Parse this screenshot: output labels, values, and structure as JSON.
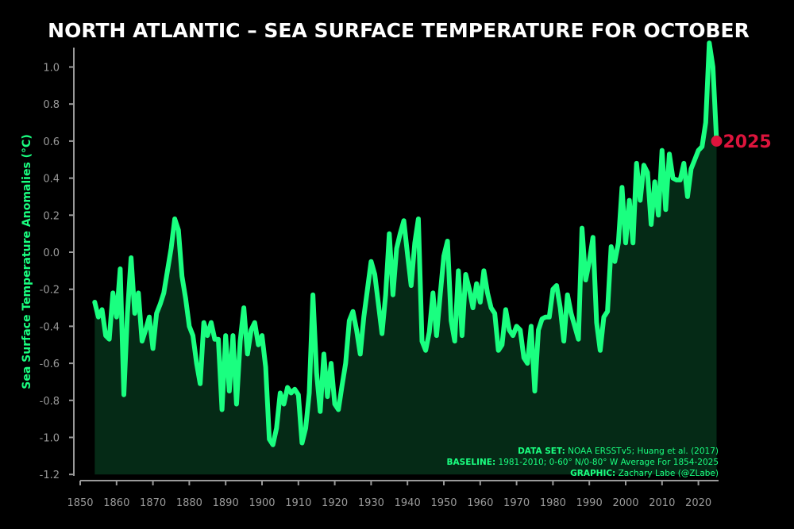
{
  "chart_data": {
    "type": "area",
    "title": "NORTH ATLANTIC – SEA SURFACE TEMPERATURE FOR OCTOBER",
    "xlabel": "",
    "ylabel": "Sea Surface Temperature Anomalies (°C)",
    "xlim": [
      1850,
      2025
    ],
    "ylim": [
      -1.2,
      1.1
    ],
    "grid": false,
    "x_ticks": [
      "1850",
      "1860",
      "1870",
      "1880",
      "1890",
      "1900",
      "1910",
      "1920",
      "1930",
      "1940",
      "1950",
      "1960",
      "1970",
      "1980",
      "1990",
      "2000",
      "2010",
      "2020"
    ],
    "y_ticks": [
      "-1.2",
      "-1.0",
      "-0.8",
      "-0.6",
      "-0.4",
      "-0.2",
      "0.0",
      "0.2",
      "0.4",
      "0.6",
      "0.8",
      "1.0"
    ],
    "x_start": 1854,
    "x_end": 2025,
    "values": [
      -0.27,
      -0.35,
      -0.31,
      -0.45,
      -0.47,
      -0.22,
      -0.35,
      -0.09,
      -0.77,
      -0.33,
      -0.03,
      -0.33,
      -0.22,
      -0.48,
      -0.42,
      -0.35,
      -0.52,
      -0.33,
      -0.28,
      -0.22,
      -0.1,
      0.02,
      0.18,
      0.12,
      -0.13,
      -0.25,
      -0.4,
      -0.45,
      -0.6,
      -0.71,
      -0.38,
      -0.45,
      -0.38,
      -0.47,
      -0.47,
      -0.85,
      -0.45,
      -0.75,
      -0.45,
      -0.82,
      -0.48,
      -0.3,
      -0.55,
      -0.42,
      -0.38,
      -0.5,
      -0.45,
      -0.62,
      -1.01,
      -1.04,
      -0.95,
      -0.76,
      -0.82,
      -0.73,
      -0.76,
      -0.74,
      -0.77,
      -1.03,
      -0.95,
      -0.76,
      -0.23,
      -0.65,
      -0.86,
      -0.55,
      -0.78,
      -0.6,
      -0.82,
      -0.85,
      -0.72,
      -0.6,
      -0.37,
      -0.32,
      -0.42,
      -0.55,
      -0.35,
      -0.2,
      -0.05,
      -0.12,
      -0.28,
      -0.44,
      -0.23,
      0.1,
      -0.23,
      0.02,
      0.1,
      0.17,
      -0.01,
      -0.18,
      0.05,
      0.18,
      -0.48,
      -0.53,
      -0.43,
      -0.22,
      -0.45,
      -0.23,
      -0.02,
      0.06,
      -0.37,
      -0.48,
      -0.1,
      -0.45,
      -0.12,
      -0.2,
      -0.3,
      -0.17,
      -0.27,
      -0.1,
      -0.22,
      -0.3,
      -0.33,
      -0.53,
      -0.5,
      -0.31,
      -0.42,
      -0.45,
      -0.4,
      -0.42,
      -0.57,
      -0.6,
      -0.4,
      -0.75,
      -0.42,
      -0.36,
      -0.35,
      -0.35,
      -0.2,
      -0.18,
      -0.3,
      -0.48,
      -0.23,
      -0.33,
      -0.4,
      -0.47,
      0.13,
      -0.15,
      -0.05,
      0.08,
      -0.38,
      -0.53,
      -0.35,
      -0.32,
      0.03,
      -0.05,
      0.05,
      0.35,
      0.05,
      0.28,
      0.05,
      0.48,
      0.28,
      0.47,
      0.43,
      0.15,
      0.38,
      0.2,
      0.55,
      0.23,
      0.53,
      0.4,
      0.39,
      0.39,
      0.48,
      0.3,
      0.45,
      0.5,
      0.55,
      0.57,
      0.7,
      1.13,
      1.0,
      0.6
    ],
    "highlight": {
      "label": "2025",
      "value": 0.6
    },
    "colors": {
      "line": "#1aff80",
      "fill": "#052a16",
      "highlight": "#dc143c",
      "axis": "#9a9a9a",
      "background": "#000000"
    }
  },
  "credits": {
    "dataset_label": "DATA SET:",
    "dataset_text": " NOAA ERSSTv5; Huang et al. (2017)",
    "baseline_label": "BASELINE:",
    "baseline_text": " 1981-2010; 0-60° N/0-80° W Average For 1854-2025",
    "graphic_label": "GRAPHIC:",
    "graphic_text": " Zachary Labe (@ZLabe)"
  }
}
